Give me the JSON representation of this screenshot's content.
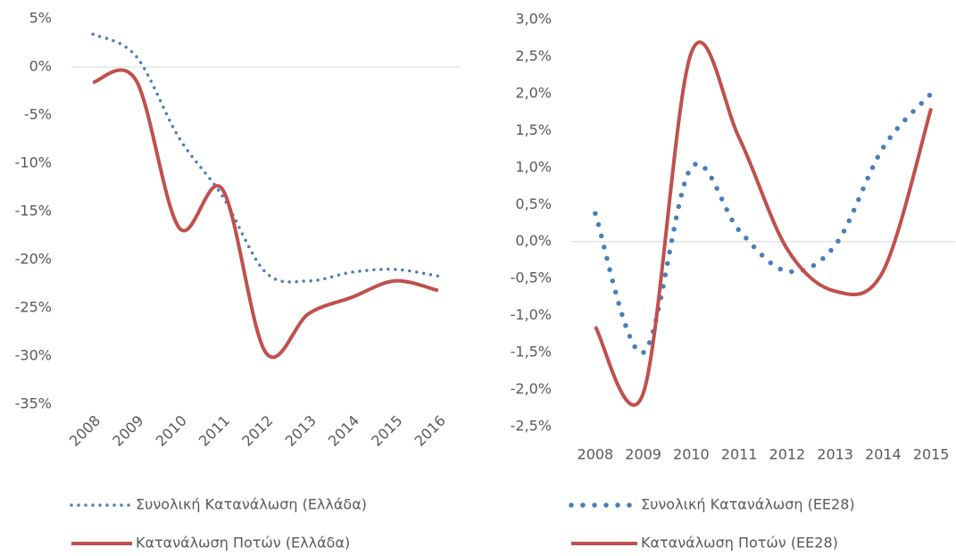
{
  "chart_data": [
    {
      "type": "line",
      "categories": [
        "2008",
        "2009",
        "2010",
        "2011",
        "2012",
        "2013",
        "2014",
        "2015",
        "2016"
      ],
      "series": [
        {
          "name": "Συνολική Κατανάλωση (Ελλάδα)",
          "color": "#4a7ebb",
          "style": "dotted",
          "values": [
            3.4,
            1.1,
            -7.4,
            -13.4,
            -21.3,
            -22.2,
            -21.3,
            -21.0,
            -21.7
          ]
        },
        {
          "name": "Κατανάλωση Ποτών (Ελλάδα)",
          "color": "#c0504d",
          "style": "solid",
          "values": [
            -1.6,
            -1.4,
            -16.7,
            -12.7,
            -29.6,
            -25.6,
            -23.9,
            -22.2,
            -23.2
          ]
        }
      ],
      "ylim": [
        -35,
        5
      ],
      "yticks": [
        {
          "value": 5,
          "label": "5%"
        },
        {
          "value": 0,
          "label": "0%"
        },
        {
          "value": -5,
          "label": "-5%"
        },
        {
          "value": -10,
          "label": "-10%"
        },
        {
          "value": -15,
          "label": "-15%"
        },
        {
          "value": -20,
          "label": "-20%"
        },
        {
          "value": -25,
          "label": "-25%"
        },
        {
          "value": -30,
          "label": "-30%"
        },
        {
          "value": -35,
          "label": "-35%"
        }
      ],
      "smooth": true,
      "grid": false,
      "rotate_x_labels": true,
      "legend": "bottom"
    },
    {
      "type": "line",
      "categories": [
        "2008",
        "2009",
        "2010",
        "2011",
        "2012",
        "2013",
        "2014",
        "2015"
      ],
      "series": [
        {
          "name": "Συνολική Κατανάλωση (ΕΕ28)",
          "color": "#4a7ebb",
          "style": "dotted",
          "values": [
            0.38,
            -1.5,
            1.0,
            0.15,
            -0.4,
            -0.05,
            1.27,
            2.0
          ]
        },
        {
          "name": "Κατανάλωση Ποτών (ΕΕ28)",
          "color": "#c0504d",
          "style": "solid",
          "values": [
            -1.15,
            -2.05,
            2.55,
            1.4,
            -0.1,
            -0.67,
            -0.4,
            1.8
          ]
        }
      ],
      "ylim": [
        -2.5,
        3.0
      ],
      "yticks": [
        {
          "value": 3.0,
          "label": "3,0%"
        },
        {
          "value": 2.5,
          "label": "2,5%"
        },
        {
          "value": 2.0,
          "label": "2,0%"
        },
        {
          "value": 1.5,
          "label": "1,5%"
        },
        {
          "value": 1.0,
          "label": "1,0%"
        },
        {
          "value": 0.5,
          "label": "0,5%"
        },
        {
          "value": 0,
          "label": "0,0%"
        },
        {
          "value": -0.5,
          "label": "-0,5%"
        },
        {
          "value": -1.0,
          "label": "-1,0%"
        },
        {
          "value": -1.5,
          "label": "-1,5%"
        },
        {
          "value": -2.0,
          "label": "-2,0%"
        },
        {
          "value": -2.5,
          "label": "-2,5%"
        }
      ],
      "smooth": true,
      "grid": false,
      "rotate_x_labels": false,
      "legend": "bottom"
    }
  ]
}
